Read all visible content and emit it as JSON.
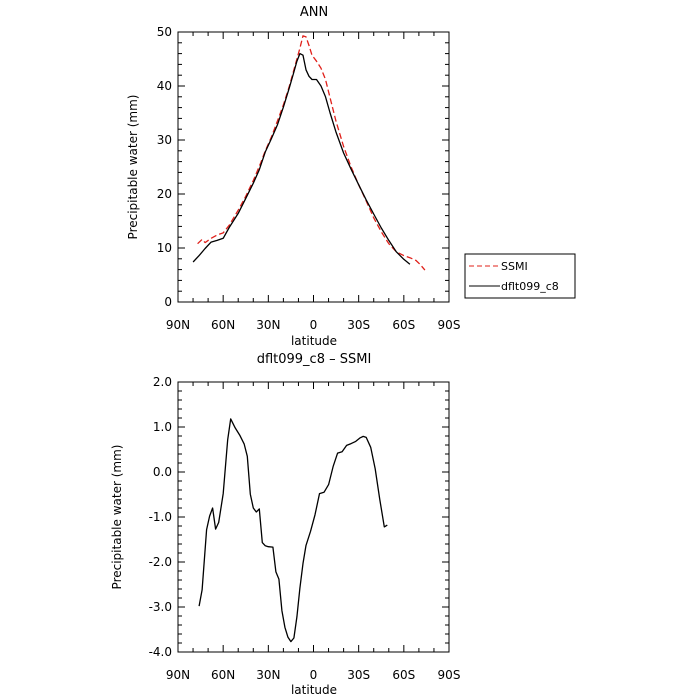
{
  "colors": {
    "ssmi": "#e0201a",
    "model": "#000000",
    "axis": "#000000",
    "background": "#ffffff"
  },
  "chart_data": [
    {
      "type": "line",
      "title": "ANN",
      "xlabel": "latitude",
      "ylabel": "Precipitable water (mm)",
      "xlim": [
        90,
        -90
      ],
      "ylim": [
        0,
        50
      ],
      "x_ticks": [
        90,
        60,
        30,
        0,
        -30,
        -60,
        -90
      ],
      "x_tick_labels": [
        "90N",
        "60N",
        "30N",
        "0",
        "30S",
        "60S",
        "90S"
      ],
      "y_ticks": [
        0,
        10,
        20,
        30,
        40,
        50
      ],
      "y_tick_labels": [
        "0",
        "10",
        "20",
        "30",
        "40",
        "50"
      ],
      "grid": false,
      "legend": "right",
      "series": [
        {
          "name": "SSMI",
          "style": "dashed",
          "color": "#e0201a",
          "points": [
            [
              77,
              10.8
            ],
            [
              74,
              11.6
            ],
            [
              72,
              11.0
            ],
            [
              68,
              11.8
            ],
            [
              64,
              12.4
            ],
            [
              60,
              12.8
            ],
            [
              56,
              14.2
            ],
            [
              50,
              17.0
            ],
            [
              45,
              19.6
            ],
            [
              40,
              22.5
            ],
            [
              35,
              25.8
            ],
            [
              32,
              28.0
            ],
            [
              28,
              30.5
            ],
            [
              24,
              33.5
            ],
            [
              20,
              36.5
            ],
            [
              16,
              40.0
            ],
            [
              12,
              44.0
            ],
            [
              9,
              47.0
            ],
            [
              7,
              49.3
            ],
            [
              5,
              49.1
            ],
            [
              3,
              47.5
            ],
            [
              1,
              45.7
            ],
            [
              -2,
              44.6
            ],
            [
              -5,
              43.3
            ],
            [
              -8,
              41.2
            ],
            [
              -11,
              37.8
            ],
            [
              -15,
              33.4
            ],
            [
              -20,
              28.8
            ],
            [
              -25,
              25.0
            ],
            [
              -30,
              21.7
            ],
            [
              -35,
              18.7
            ],
            [
              -40,
              15.6
            ],
            [
              -45,
              13.0
            ],
            [
              -50,
              10.8
            ],
            [
              -55,
              9.3
            ],
            [
              -60,
              8.6
            ],
            [
              -64,
              8.2
            ],
            [
              -68,
              7.7
            ],
            [
              -71,
              6.9
            ],
            [
              -74,
              5.9
            ]
          ]
        },
        {
          "name": "dflt099_c8",
          "style": "solid",
          "color": "#000000",
          "points": [
            [
              80,
              7.4
            ],
            [
              76,
              8.6
            ],
            [
              72,
              9.9
            ],
            [
              68,
              11.1
            ],
            [
              64,
              11.4
            ],
            [
              60,
              11.8
            ],
            [
              56,
              13.8
            ],
            [
              50,
              16.4
            ],
            [
              45,
              19.2
            ],
            [
              40,
              22.0
            ],
            [
              36,
              24.5
            ],
            [
              32,
              27.8
            ],
            [
              28,
              30.2
            ],
            [
              24,
              32.8
            ],
            [
              20,
              36.1
            ],
            [
              16,
              39.7
            ],
            [
              13,
              42.6
            ],
            [
              11,
              44.6
            ],
            [
              9,
              46.0
            ],
            [
              7,
              45.7
            ],
            [
              5,
              43.0
            ],
            [
              3,
              41.8
            ],
            [
              1,
              41.2
            ],
            [
              -2,
              41.2
            ],
            [
              -5,
              40.0
            ],
            [
              -8,
              38.0
            ],
            [
              -11,
              35.0
            ],
            [
              -15,
              31.4
            ],
            [
              -20,
              27.6
            ],
            [
              -25,
              24.6
            ],
            [
              -30,
              21.7
            ],
            [
              -35,
              18.9
            ],
            [
              -40,
              16.3
            ],
            [
              -45,
              13.7
            ],
            [
              -50,
              11.4
            ],
            [
              -55,
              9.3
            ],
            [
              -60,
              7.9
            ],
            [
              -64,
              7.0
            ]
          ]
        }
      ]
    },
    {
      "type": "line",
      "title": "dflt099_c8 – SSMI",
      "xlabel": "latitude",
      "ylabel": "Precipitable water (mm)",
      "xlim": [
        90,
        -90
      ],
      "ylim": [
        -4,
        2
      ],
      "x_ticks": [
        90,
        60,
        30,
        0,
        -30,
        -60,
        -90
      ],
      "x_tick_labels": [
        "90N",
        "60N",
        "30N",
        "0",
        "30S",
        "60S",
        "90S"
      ],
      "y_ticks": [
        -4,
        -3,
        -2,
        -1,
        0,
        1,
        2
      ],
      "y_tick_labels": [
        "-4.0",
        "-3.0",
        "-2.0",
        "-1.0",
        "0.0",
        "1.0",
        "2.0"
      ],
      "grid": false,
      "series": [
        {
          "style": "solid",
          "color": "#000000",
          "points": [
            [
              76,
              -2.98
            ],
            [
              74,
              -2.62
            ],
            [
              71,
              -1.28
            ],
            [
              69,
              -0.98
            ],
            [
              67,
              -0.8
            ],
            [
              65,
              -1.27
            ],
            [
              63,
              -1.12
            ],
            [
              60,
              -0.48
            ],
            [
              57,
              0.72
            ],
            [
              55,
              1.18
            ],
            [
              52,
              0.98
            ],
            [
              49,
              0.82
            ],
            [
              46,
              0.62
            ],
            [
              44,
              0.35
            ],
            [
              42,
              -0.49
            ],
            [
              40,
              -0.8
            ],
            [
              38,
              -0.89
            ],
            [
              36,
              -0.82
            ],
            [
              34,
              -1.57
            ],
            [
              32,
              -1.64
            ],
            [
              30,
              -1.66
            ],
            [
              27,
              -1.67
            ],
            [
              25,
              -2.22
            ],
            [
              23,
              -2.38
            ],
            [
              21,
              -3.08
            ],
            [
              19,
              -3.45
            ],
            [
              17,
              -3.67
            ],
            [
              15,
              -3.77
            ],
            [
              13,
              -3.69
            ],
            [
              11,
              -3.22
            ],
            [
              9,
              -2.58
            ],
            [
              7,
              -2.03
            ],
            [
              5,
              -1.63
            ],
            [
              2,
              -1.32
            ],
            [
              -1,
              -0.95
            ],
            [
              -4,
              -0.48
            ],
            [
              -7,
              -0.45
            ],
            [
              -10,
              -0.28
            ],
            [
              -13,
              0.12
            ],
            [
              -16,
              0.42
            ],
            [
              -19,
              0.45
            ],
            [
              -22,
              0.59
            ],
            [
              -25,
              0.63
            ],
            [
              -28,
              0.68
            ],
            [
              -31,
              0.76
            ],
            [
              -33,
              0.79
            ],
            [
              -35,
              0.77
            ],
            [
              -38,
              0.55
            ],
            [
              -41,
              0.07
            ],
            [
              -44,
              -0.6
            ],
            [
              -47,
              -1.22
            ],
            [
              -49,
              -1.18
            ]
          ]
        }
      ]
    }
  ]
}
